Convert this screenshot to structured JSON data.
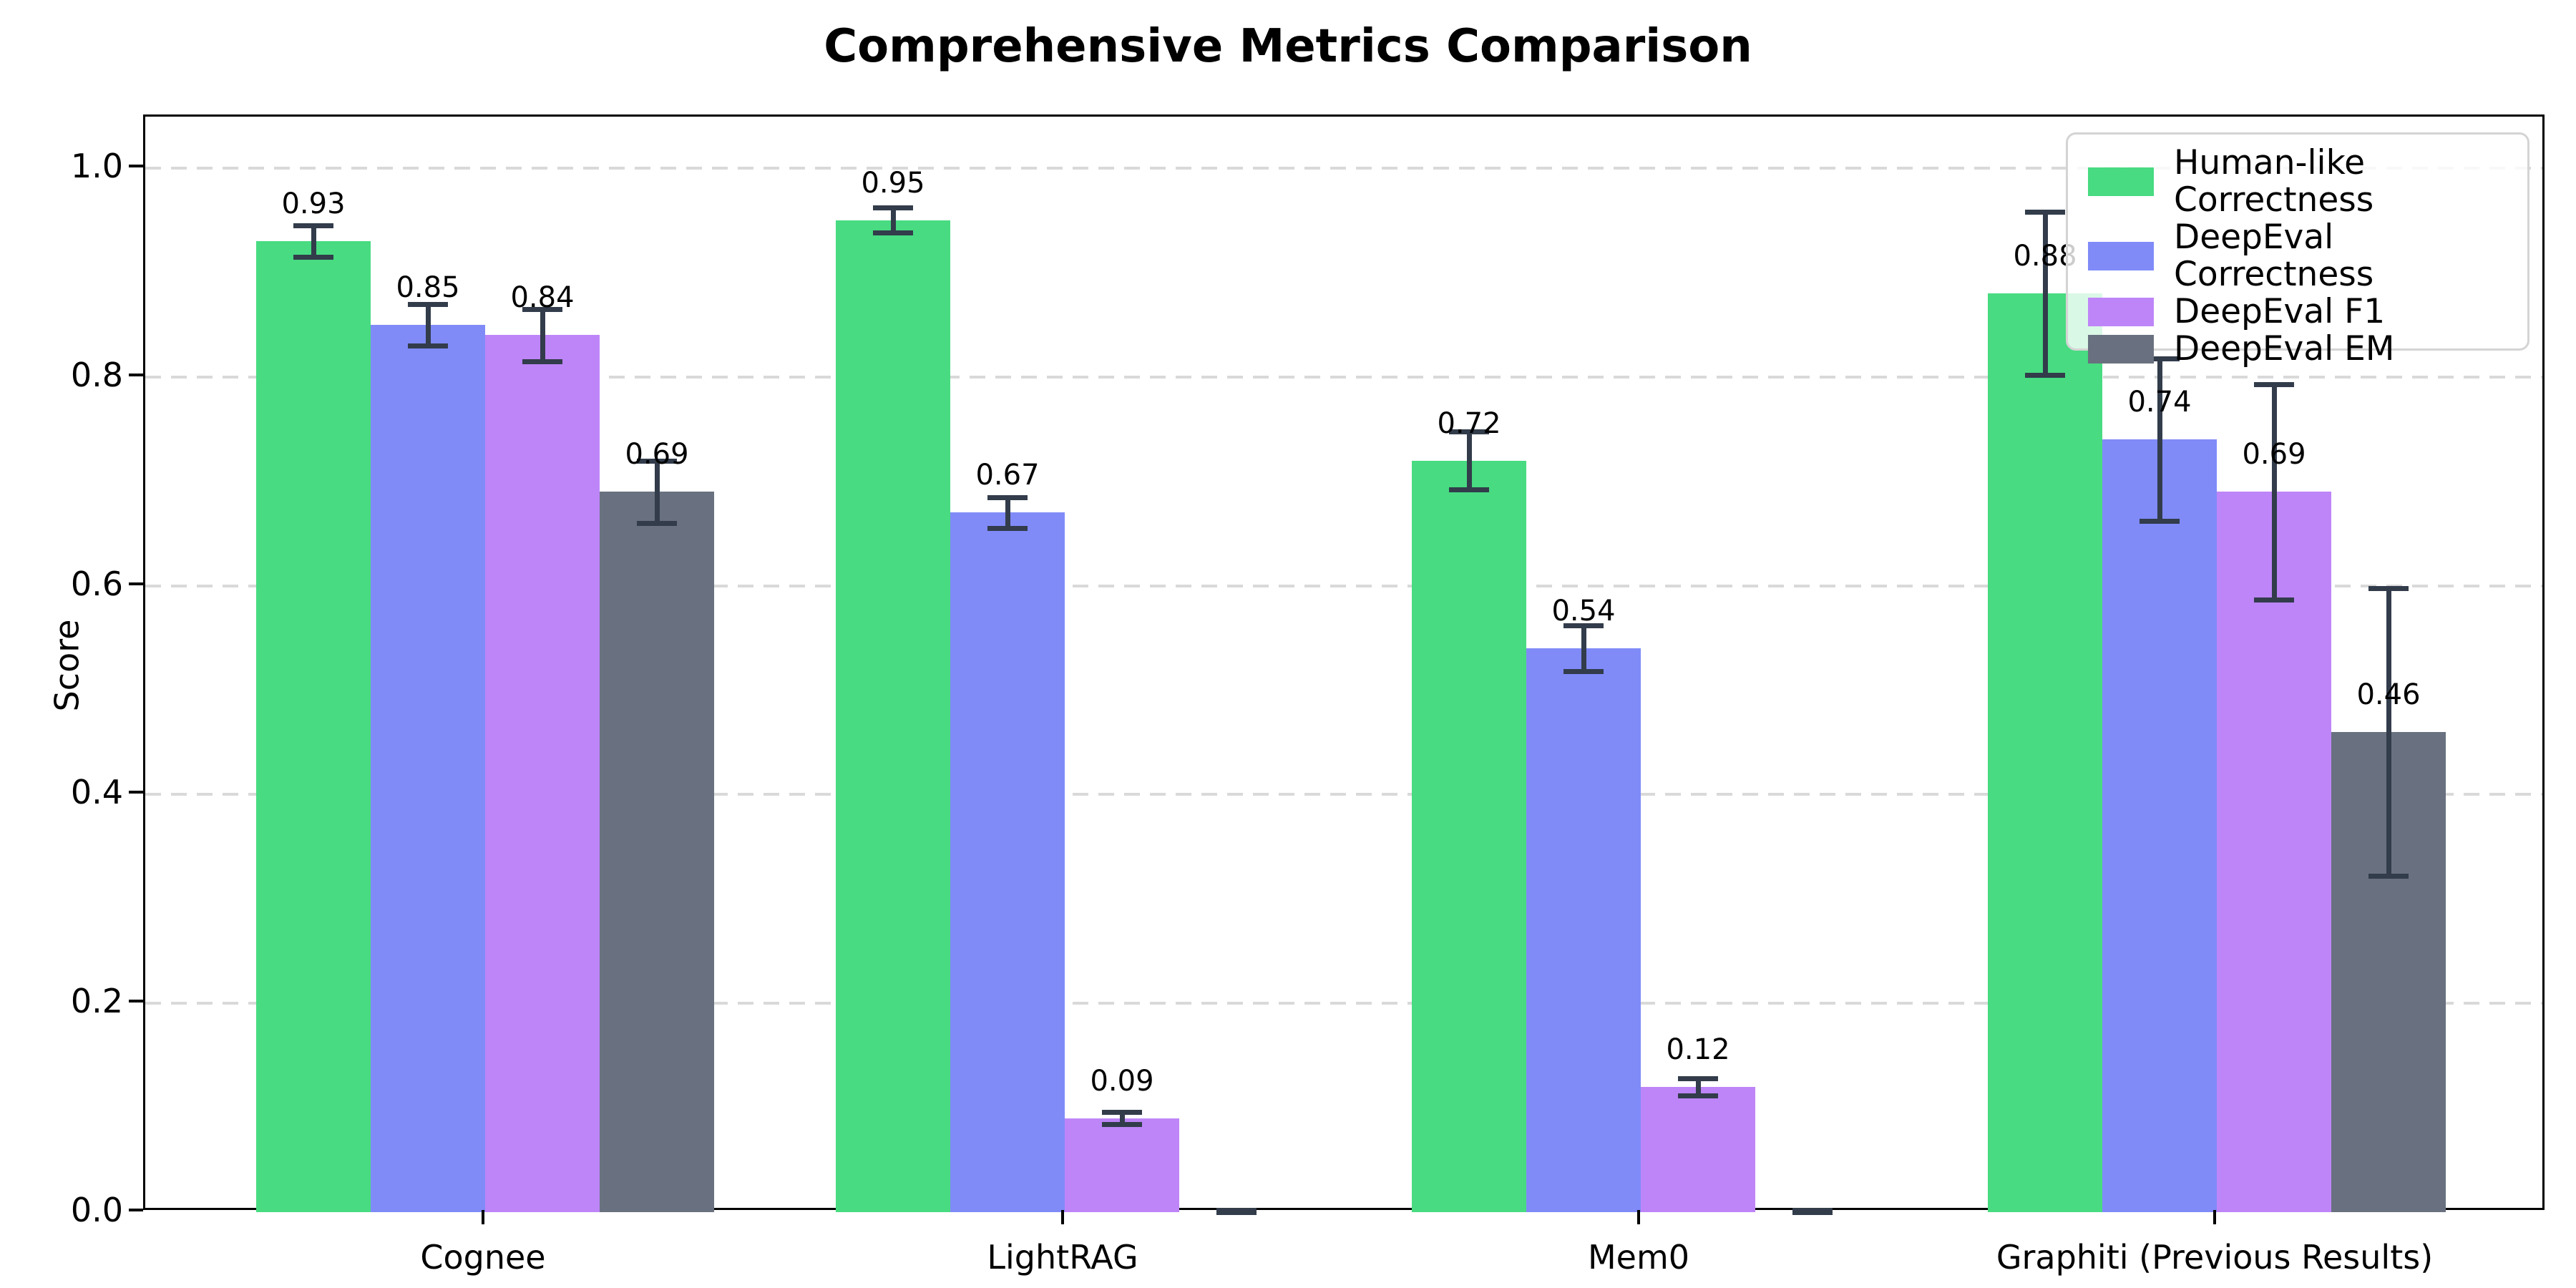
{
  "chart_data": {
    "type": "bar",
    "title": "Comprehensive Metrics Comparison",
    "xlabel": "",
    "ylabel": "Score",
    "categories": [
      "Cognee",
      "LightRAG",
      "Mem0",
      "Graphiti (Previous Results)"
    ],
    "series": [
      {
        "name": "Human-like Correctness",
        "color": "#48db81",
        "values": [
          0.93,
          0.95,
          0.72,
          0.88
        ],
        "errors": [
          0.015,
          0.012,
          0.028,
          0.078
        ],
        "value_labels": [
          "0.93",
          "0.95",
          "0.72",
          "0.88"
        ]
      },
      {
        "name": "DeepEval Correctness",
        "color": "#808bf8",
        "values": [
          0.85,
          0.67,
          0.54,
          0.74
        ],
        "errors": [
          0.02,
          0.015,
          0.022,
          0.078
        ],
        "value_labels": [
          "0.85",
          "0.67",
          "0.54",
          "0.74"
        ]
      },
      {
        "name": "DeepEval F1",
        "color": "#be85f8",
        "values": [
          0.84,
          0.09,
          0.12,
          0.69
        ],
        "errors": [
          0.025,
          0.006,
          0.008,
          0.103
        ],
        "value_labels": [
          "0.84",
          "0.09",
          "0.12",
          "0.69"
        ]
      },
      {
        "name": "DeepEval EM",
        "color": "#697180",
        "values": [
          0.69,
          0.0,
          0.0,
          0.46
        ],
        "errors": [
          0.03,
          0.002,
          0.002,
          0.138
        ],
        "value_labels": [
          "0.69",
          null,
          null,
          "0.46"
        ]
      }
    ],
    "ylim": [
      0.0,
      1.049
    ],
    "yticks": [
      0.0,
      0.2,
      0.4,
      0.6,
      0.8,
      1.0
    ],
    "ytick_labels": [
      "0.0",
      "0.2",
      "0.4",
      "0.6",
      "0.8",
      "1.0"
    ],
    "grid": "horizontal-dashed",
    "grid_color": "#d9d9d9",
    "legend_position": "upper-right",
    "legend_entries": [
      "Human-like Correctness",
      "DeepEval Correctness",
      "DeepEval F1",
      "DeepEval EM"
    ],
    "errorbar_color": "#323c4b",
    "background_color": "#ffffff"
  }
}
